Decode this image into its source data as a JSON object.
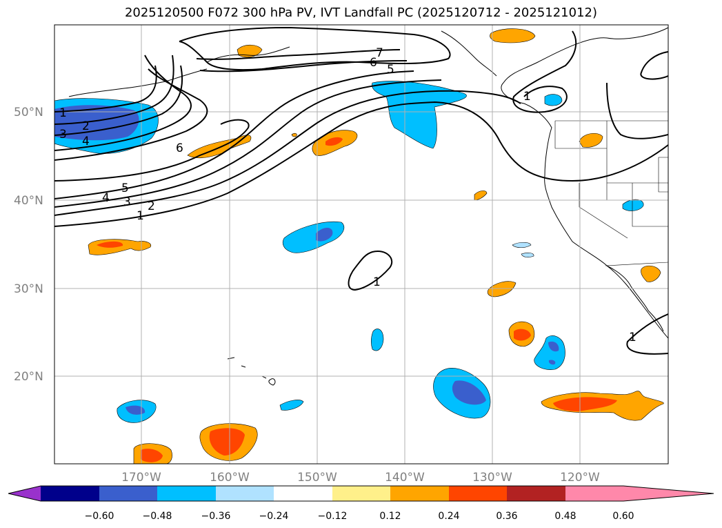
{
  "title": "2025120500 F072 300 hPa PV, IVT Landfall PC (2025120712 - 2025121012)",
  "axes": {
    "lat_labels": [
      "50°N",
      "40°N",
      "30°N",
      "20°N"
    ],
    "lon_labels": [
      "170°W",
      "160°W",
      "150°W",
      "140°W",
      "130°W",
      "120°W"
    ]
  },
  "colorbar": {
    "colors": [
      "#9932cc",
      "#00008b",
      "#3a5fcd",
      "#00bfff",
      "#b0e2ff",
      "#ffffff",
      "#fff08a",
      "#ffa500",
      "#ff4500",
      "#b22222",
      "#ff88aa"
    ],
    "tick_labels": [
      "−0.60",
      "−0.48",
      "−0.36",
      "−0.24",
      "−0.12",
      "0.12",
      "0.24",
      "0.36",
      "0.48",
      "0.60"
    ],
    "extend": "both"
  },
  "pv_contour_labels": [
    "1",
    "2",
    "3",
    "4",
    "1",
    "2",
    "3",
    "4",
    "5",
    "6",
    "7",
    "6",
    "5",
    "1",
    "1",
    "1"
  ]
}
